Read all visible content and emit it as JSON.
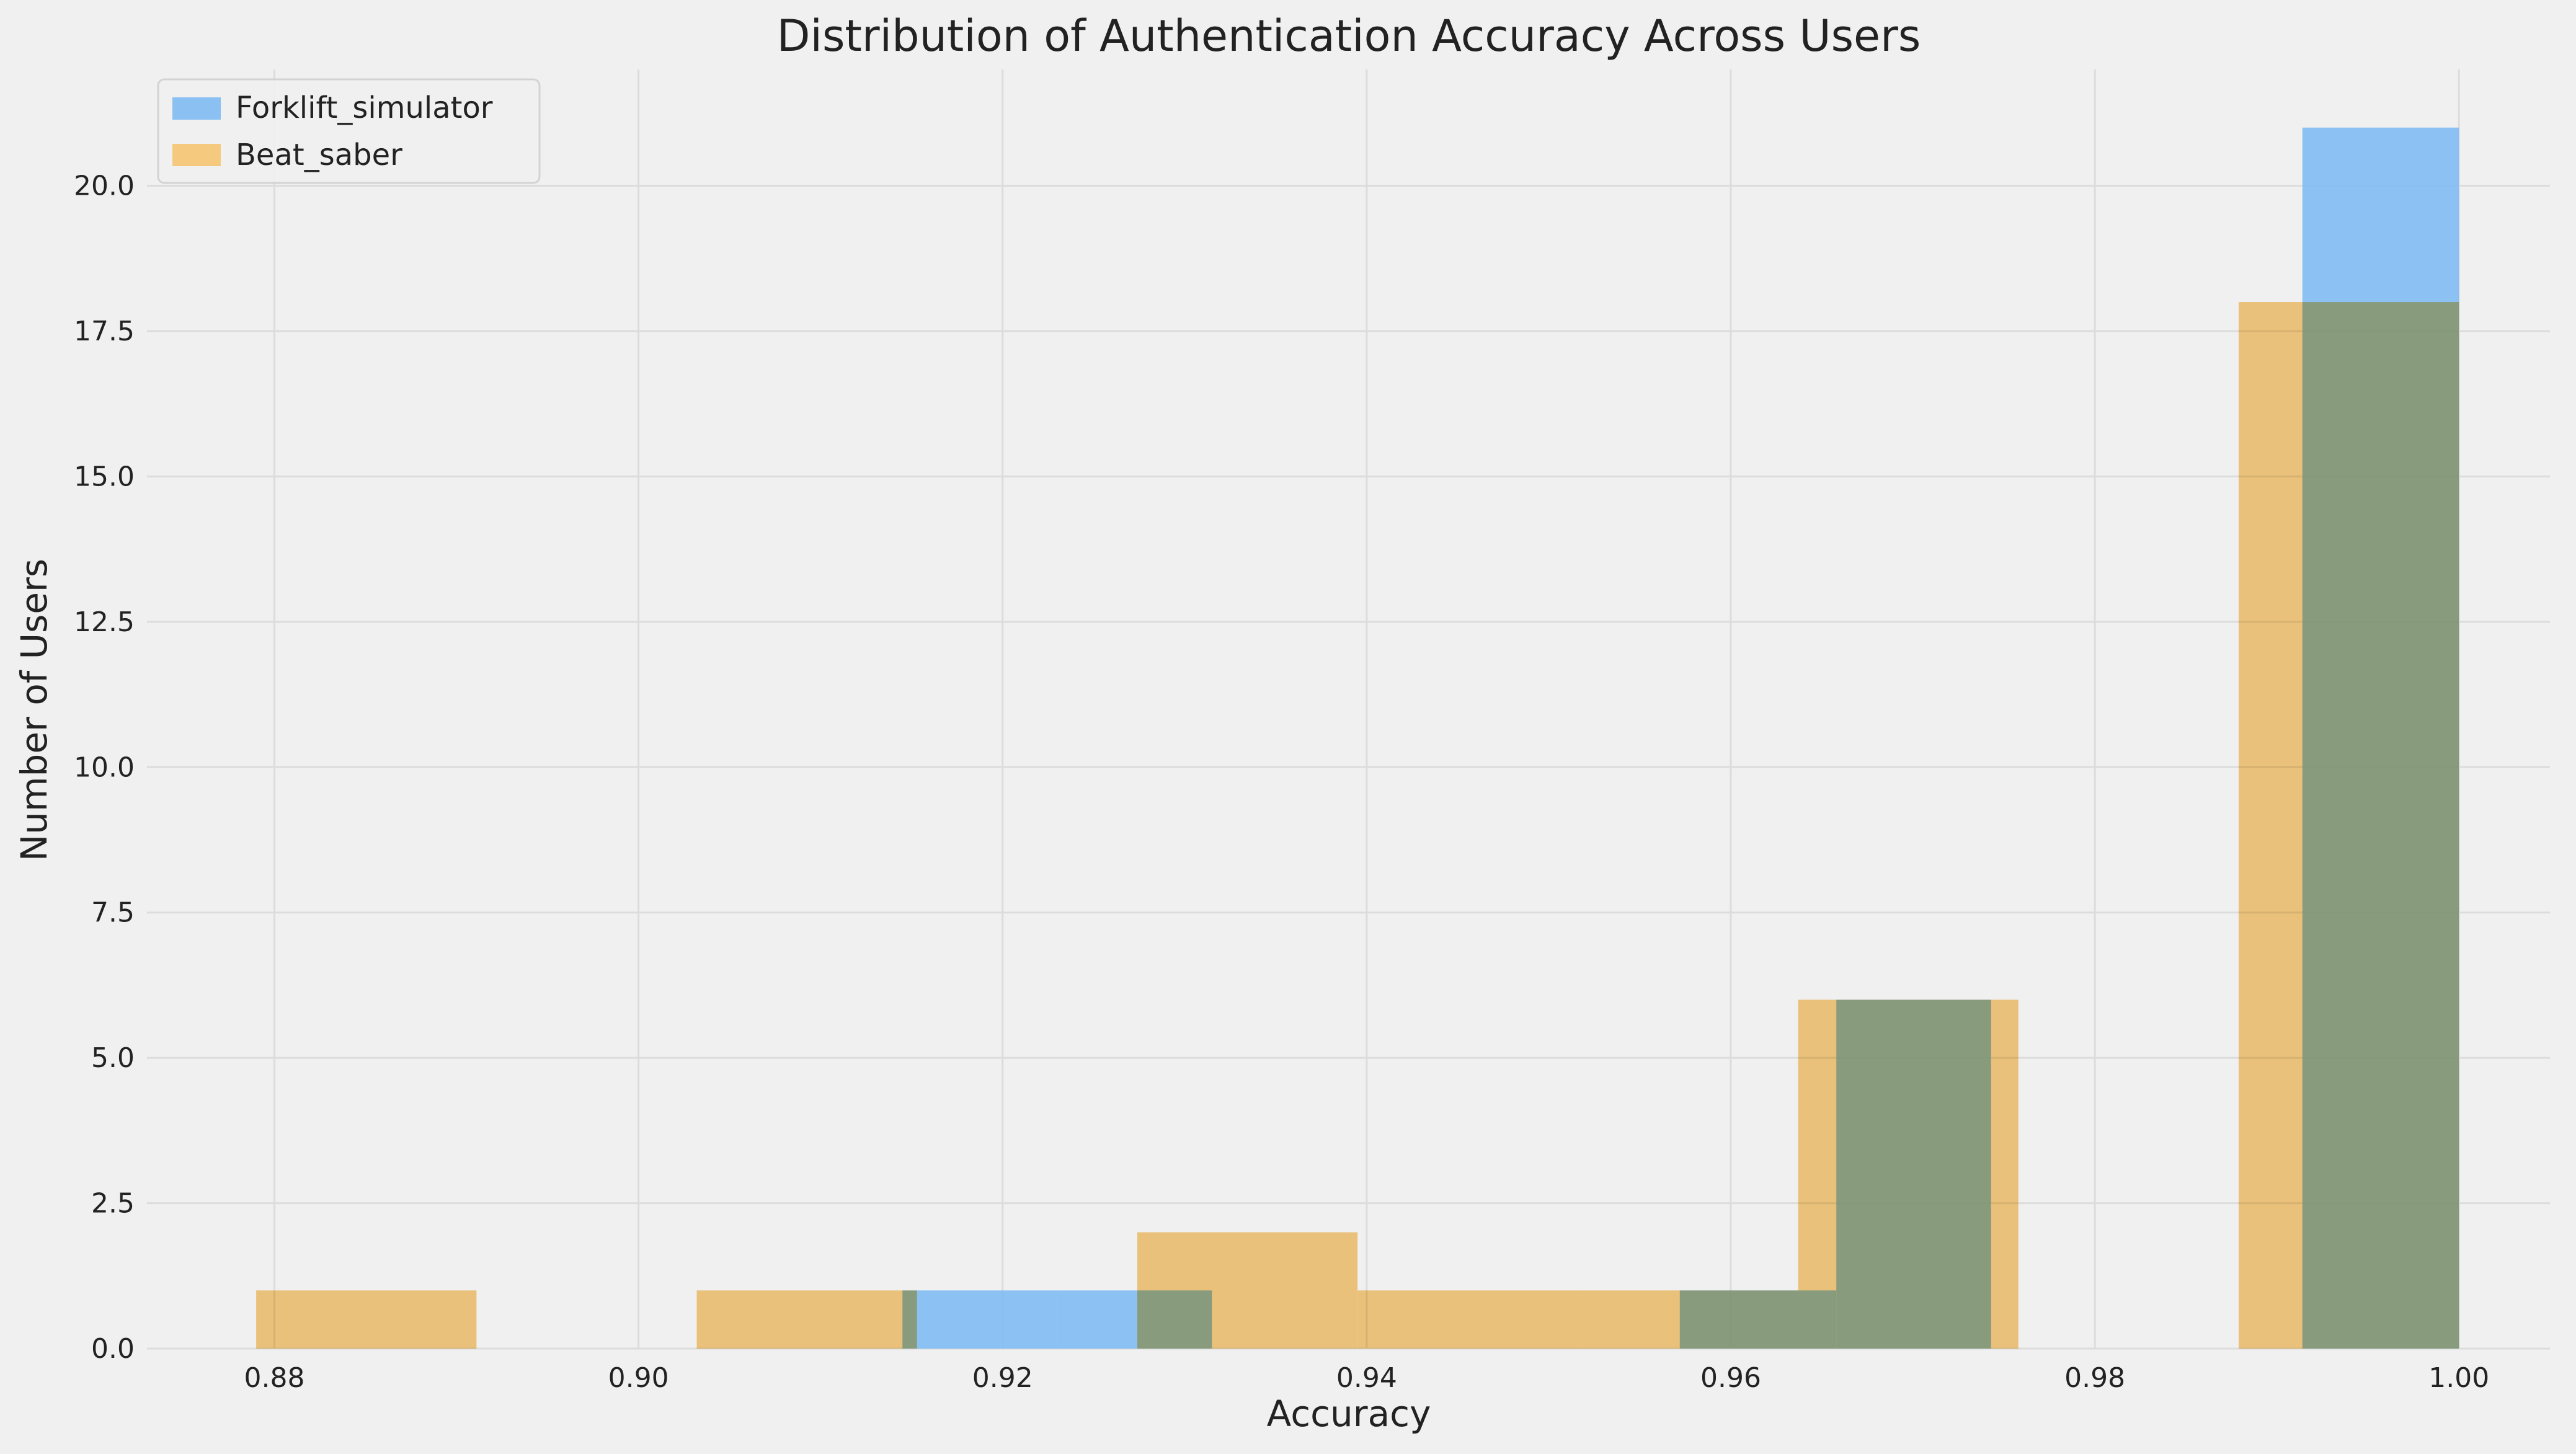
{
  "chart_data": {
    "type": "bar",
    "title": "Distribution of Authentication Accuracy Across Users",
    "xlabel": "Accuracy",
    "ylabel": "Number of Users",
    "xlim": [
      0.873,
      1.005
    ],
    "ylim": [
      0,
      22
    ],
    "xticks": [
      "0.88",
      "0.90",
      "0.92",
      "0.94",
      "0.96",
      "0.98",
      "1.00"
    ],
    "yticks": [
      "0.0",
      "2.5",
      "5.0",
      "7.5",
      "10.0",
      "12.5",
      "15.0",
      "17.5",
      "20.0"
    ],
    "grid": true,
    "legend_position": "top-left",
    "series": [
      {
        "name": "Forklift_simulator",
        "color": "#7ab8f5",
        "bins": [
          {
            "start": 0.9145,
            "end": 0.923,
            "count": 1
          },
          {
            "start": 0.923,
            "end": 0.9315,
            "count": 1
          },
          {
            "start": 0.9572,
            "end": 0.9658,
            "count": 1
          },
          {
            "start": 0.9658,
            "end": 0.9743,
            "count": 6
          },
          {
            "start": 0.9914,
            "end": 1.0,
            "count": 21
          }
        ]
      },
      {
        "name": "Beat_saber",
        "color": "#f7c46c",
        "bins": [
          {
            "start": 0.879,
            "end": 0.8911,
            "count": 1
          },
          {
            "start": 0.9032,
            "end": 0.9153,
            "count": 1
          },
          {
            "start": 0.9274,
            "end": 0.9395,
            "count": 2
          },
          {
            "start": 0.9395,
            "end": 0.9516,
            "count": 1
          },
          {
            "start": 0.9516,
            "end": 0.9637,
            "count": 1
          },
          {
            "start": 0.9637,
            "end": 0.9758,
            "count": 6
          },
          {
            "start": 0.9879,
            "end": 1.0,
            "count": 18
          }
        ]
      }
    ]
  }
}
